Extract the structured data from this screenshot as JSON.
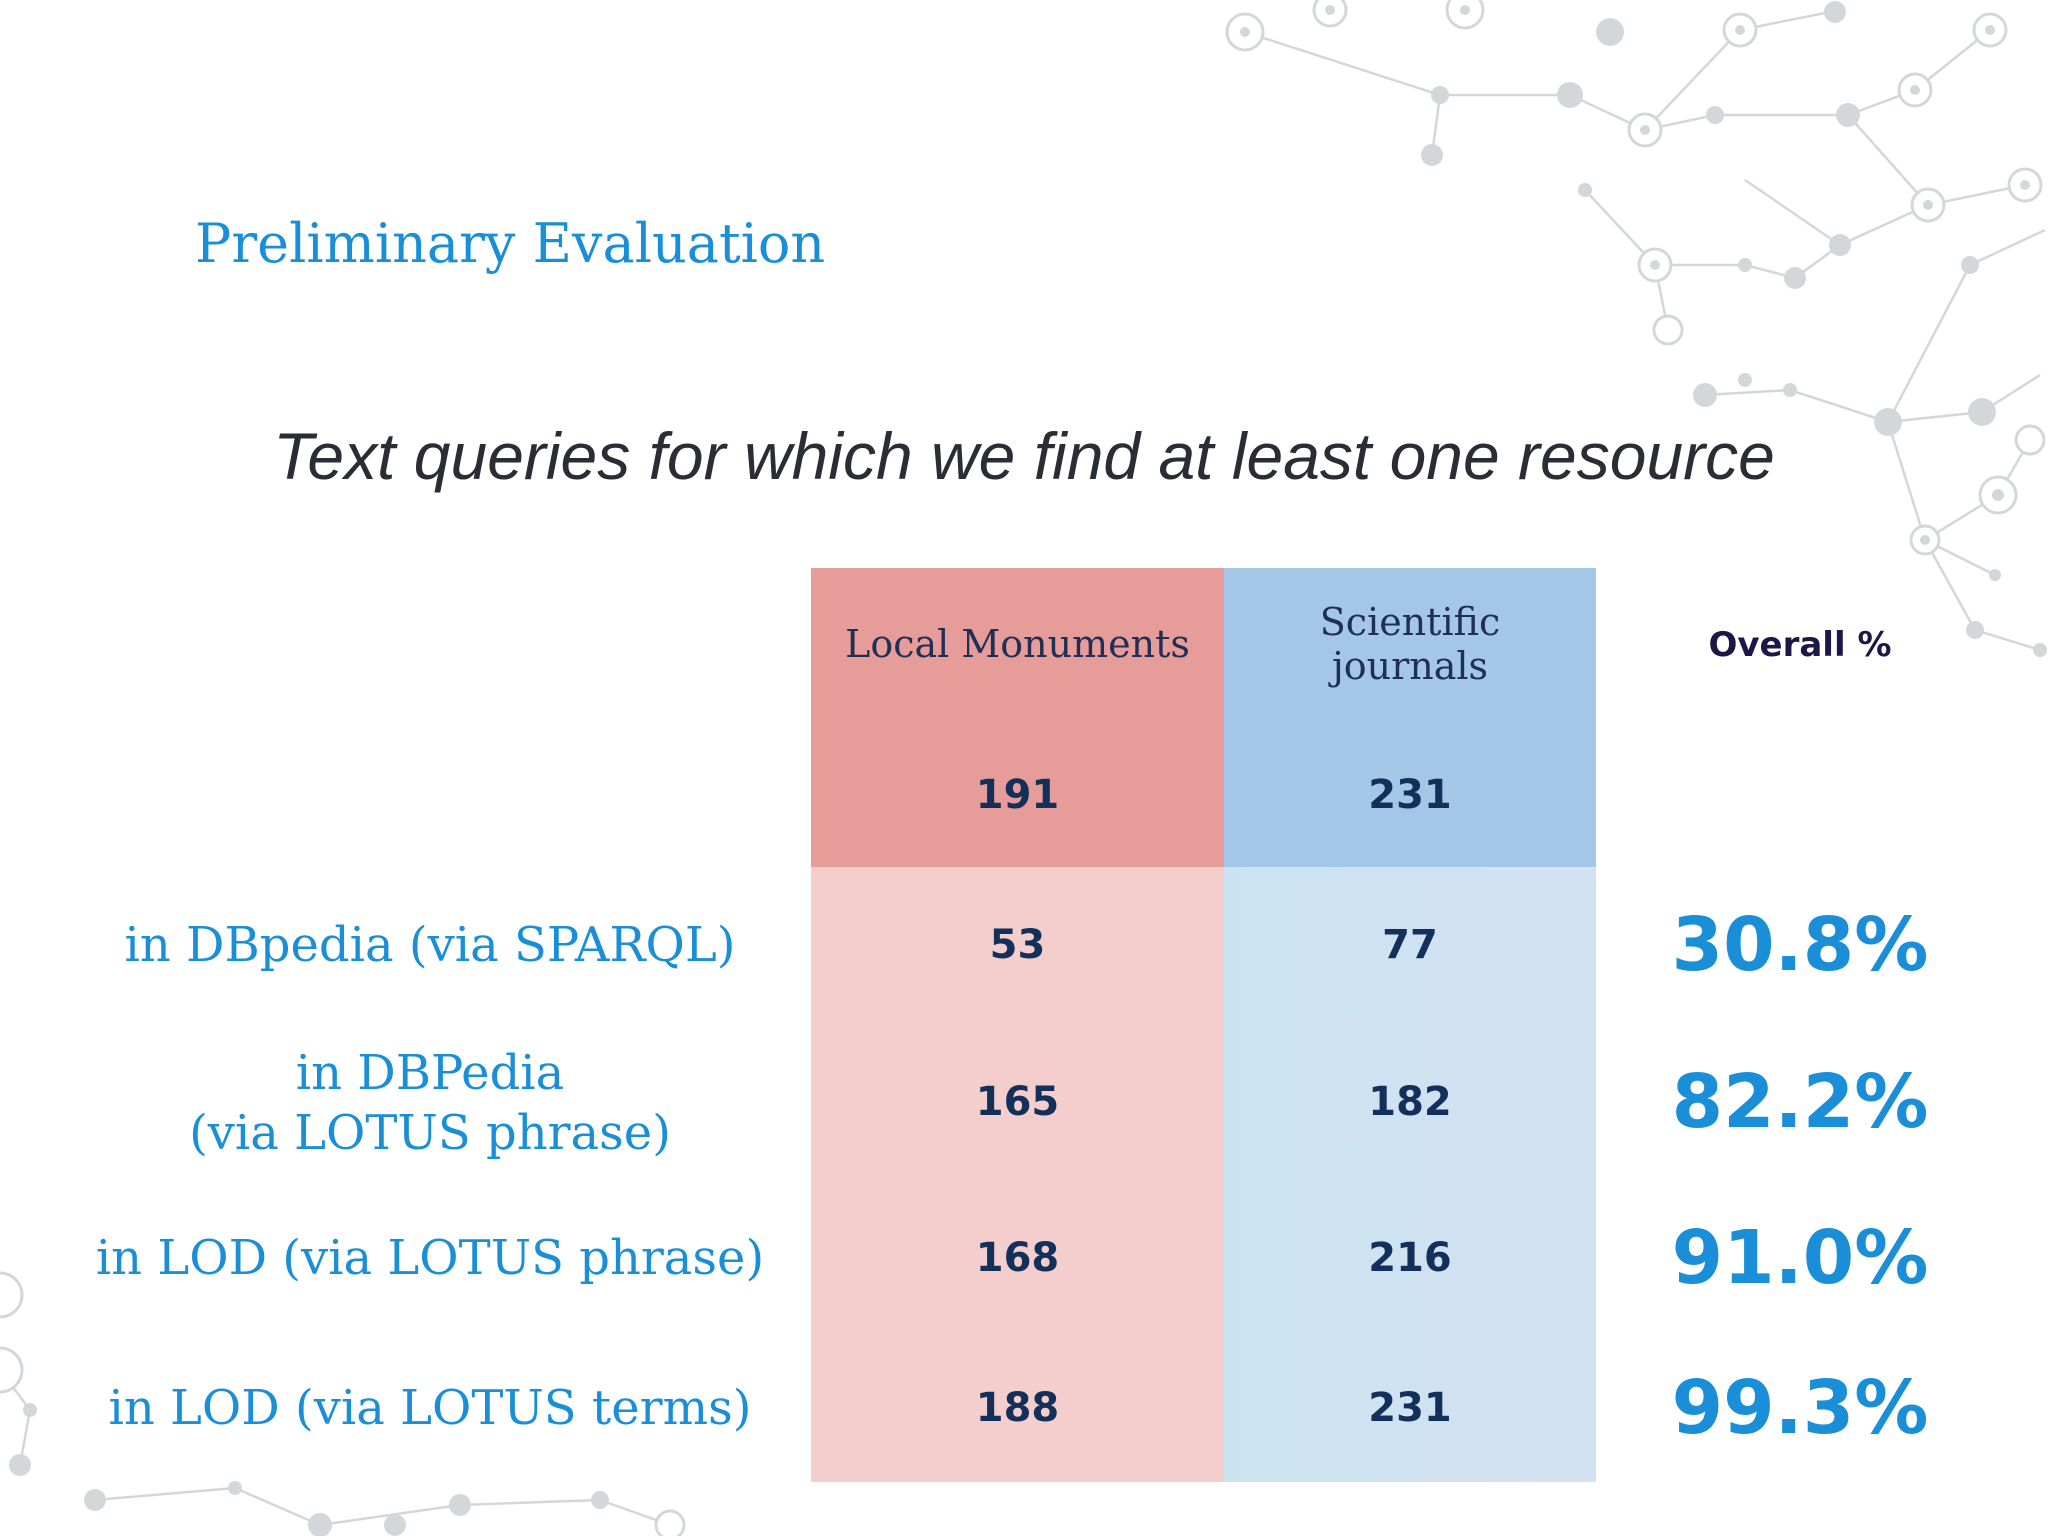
{
  "slide": {
    "title": "Preliminary Evaluation",
    "subtitle": "Text queries for which we find at least one resource"
  },
  "colors": {
    "accent": "#1a8fd8",
    "dark_text": "#12305a",
    "red_header": "#e69c99",
    "red_body": "#f4cecc",
    "blue_header": "#a4c6e7",
    "blue_body": "#cfe2f1"
  },
  "table": {
    "columns": [
      {
        "label": "Local Monuments",
        "total": "191"
      },
      {
        "label": "Scientific journals",
        "total": "231"
      }
    ],
    "overall_header": "Overall %",
    "rows": [
      {
        "label": "in DBpedia (via SPARQL)",
        "values": [
          "53",
          "77"
        ],
        "overall": "30.8%"
      },
      {
        "label": "in DBPedia\n(via LOTUS phrase)",
        "values": [
          "165",
          "182"
        ],
        "overall": "82.2%"
      },
      {
        "label": "in LOD (via LOTUS phrase)",
        "values": [
          "168",
          "216"
        ],
        "overall": "91.0%"
      },
      {
        "label": "in LOD (via LOTUS terms)",
        "values": [
          "188",
          "231"
        ],
        "overall": "99.3%"
      }
    ]
  }
}
